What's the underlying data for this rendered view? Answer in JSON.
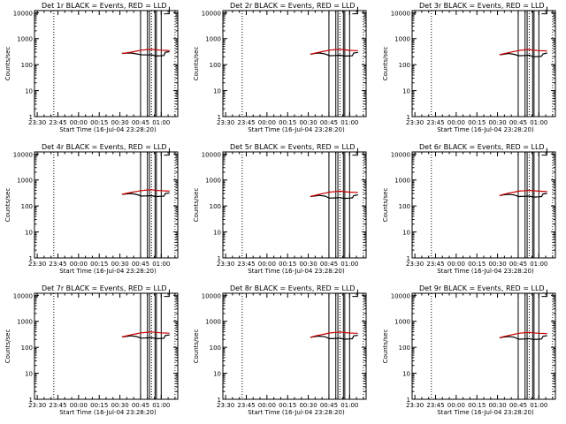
{
  "chart_data": {
    "type": "line",
    "layout": {
      "rows": 3,
      "cols": 3
    },
    "shared": {
      "xlabel": "Start Time (16-Jul-04 23:28:20)",
      "ylabel": "Counts/sec",
      "x_tick_labels": [
        "23:30",
        "23:45",
        "00:00",
        "00:15",
        "00:30",
        "00:45",
        "01:00"
      ],
      "x_ticks_min": [
        0,
        15,
        30,
        45,
        60,
        75,
        90
      ],
      "xlim_min": [
        -2,
        102
      ],
      "ylim": [
        1,
        12000
      ],
      "y_scale": "log",
      "y_tick_labels": [
        "1",
        "10",
        "100",
        "1000",
        "10000"
      ],
      "y_ticks": [
        1,
        10,
        100,
        1000,
        10000
      ],
      "vlines_dotted_min": [
        12,
        83,
        100
      ],
      "vlines_solid_min": [
        75,
        80,
        81.5,
        85.5,
        86.5,
        90
      ],
      "series_colors": {
        "events": "#000000",
        "lld": "#cc0000"
      }
    },
    "panels": [
      {
        "title": "Det 1r BLACK = Events, RED = LLD",
        "events": [
          [
            61.5,
            270
          ],
          [
            64,
            275
          ],
          [
            68,
            280
          ],
          [
            72,
            260
          ],
          [
            75.5,
            240
          ],
          [
            80,
            235
          ],
          [
            83,
            240
          ],
          [
            86,
            215
          ],
          [
            90,
            220
          ],
          [
            92,
            225
          ],
          [
            93,
            300
          ],
          [
            96,
            315
          ]
        ],
        "lld": [
          [
            61.5,
            270
          ],
          [
            64,
            280
          ],
          [
            68,
            300
          ],
          [
            72,
            330
          ],
          [
            75.5,
            360
          ],
          [
            80,
            380
          ],
          [
            83,
            385
          ],
          [
            86,
            375
          ],
          [
            90,
            360
          ],
          [
            93,
            355
          ],
          [
            96,
            350
          ]
        ]
      },
      {
        "title": "Det 2r BLACK = Events, RED = LLD",
        "events": [
          [
            61.5,
            250
          ],
          [
            64,
            265
          ],
          [
            68,
            280
          ],
          [
            72,
            260
          ],
          [
            75.5,
            220
          ],
          [
            80,
            225
          ],
          [
            83,
            230
          ],
          [
            86,
            215
          ],
          [
            90,
            215
          ],
          [
            92,
            220
          ],
          [
            93,
            280
          ],
          [
            96,
            295
          ]
        ],
        "lld": [
          [
            61.5,
            250
          ],
          [
            64,
            270
          ],
          [
            68,
            300
          ],
          [
            72,
            330
          ],
          [
            75.5,
            360
          ],
          [
            80,
            380
          ],
          [
            83,
            390
          ],
          [
            86,
            370
          ],
          [
            90,
            355
          ],
          [
            93,
            350
          ],
          [
            96,
            345
          ]
        ]
      },
      {
        "title": "Det 3r BLACK = Events, RED = LLD",
        "events": [
          [
            61.5,
            240
          ],
          [
            64,
            250
          ],
          [
            68,
            270
          ],
          [
            72,
            250
          ],
          [
            75.5,
            220
          ],
          [
            80,
            225
          ],
          [
            83,
            230
          ],
          [
            86,
            200
          ],
          [
            90,
            205
          ],
          [
            92,
            210
          ],
          [
            93,
            260
          ],
          [
            96,
            280
          ]
        ],
        "lld": [
          [
            61.5,
            240
          ],
          [
            64,
            260
          ],
          [
            68,
            290
          ],
          [
            72,
            320
          ],
          [
            75.5,
            350
          ],
          [
            80,
            370
          ],
          [
            83,
            380
          ],
          [
            86,
            360
          ],
          [
            90,
            345
          ],
          [
            93,
            340
          ],
          [
            96,
            335
          ]
        ]
      },
      {
        "title": "Det 4r BLACK = Events, RED = LLD",
        "events": [
          [
            61.5,
            280
          ],
          [
            64,
            290
          ],
          [
            68,
            300
          ],
          [
            72,
            280
          ],
          [
            75.5,
            240
          ],
          [
            80,
            245
          ],
          [
            83,
            250
          ],
          [
            86,
            230
          ],
          [
            90,
            235
          ],
          [
            92,
            240
          ],
          [
            93,
            300
          ],
          [
            96,
            320
          ]
        ],
        "lld": [
          [
            61.5,
            280
          ],
          [
            64,
            300
          ],
          [
            68,
            330
          ],
          [
            72,
            360
          ],
          [
            75.5,
            390
          ],
          [
            80,
            410
          ],
          [
            83,
            420
          ],
          [
            86,
            400
          ],
          [
            90,
            390
          ],
          [
            93,
            380
          ],
          [
            96,
            370
          ]
        ]
      },
      {
        "title": "Det 5r BLACK = Events, RED = LLD",
        "events": [
          [
            61.5,
            230
          ],
          [
            64,
            240
          ],
          [
            68,
            255
          ],
          [
            72,
            240
          ],
          [
            75.5,
            200
          ],
          [
            80,
            205
          ],
          [
            83,
            210
          ],
          [
            86,
            195
          ],
          [
            90,
            200
          ],
          [
            92,
            205
          ],
          [
            93,
            250
          ],
          [
            96,
            270
          ]
        ],
        "lld": [
          [
            61.5,
            230
          ],
          [
            64,
            250
          ],
          [
            68,
            280
          ],
          [
            72,
            310
          ],
          [
            75.5,
            340
          ],
          [
            80,
            360
          ],
          [
            83,
            370
          ],
          [
            86,
            355
          ],
          [
            90,
            340
          ],
          [
            93,
            335
          ],
          [
            96,
            330
          ]
        ]
      },
      {
        "title": "Det 6r BLACK = Events, RED = LLD",
        "events": [
          [
            61.5,
            250
          ],
          [
            64,
            265
          ],
          [
            68,
            280
          ],
          [
            72,
            265
          ],
          [
            75.5,
            230
          ],
          [
            80,
            235
          ],
          [
            83,
            240
          ],
          [
            86,
            220
          ],
          [
            90,
            225
          ],
          [
            92,
            230
          ],
          [
            93,
            290
          ],
          [
            96,
            305
          ]
        ],
        "lld": [
          [
            61.5,
            250
          ],
          [
            64,
            275
          ],
          [
            68,
            310
          ],
          [
            72,
            340
          ],
          [
            75.5,
            370
          ],
          [
            80,
            390
          ],
          [
            83,
            400
          ],
          [
            86,
            385
          ],
          [
            90,
            370
          ],
          [
            93,
            365
          ],
          [
            96,
            360
          ]
        ]
      },
      {
        "title": "Det 7r BLACK = Events, RED = LLD",
        "events": [
          [
            61.5,
            250
          ],
          [
            64,
            260
          ],
          [
            68,
            275
          ],
          [
            72,
            260
          ],
          [
            75.5,
            225
          ],
          [
            80,
            230
          ],
          [
            83,
            235
          ],
          [
            86,
            215
          ],
          [
            90,
            220
          ],
          [
            92,
            225
          ],
          [
            93,
            285
          ],
          [
            96,
            300
          ]
        ],
        "lld": [
          [
            61.5,
            250
          ],
          [
            64,
            270
          ],
          [
            68,
            300
          ],
          [
            72,
            330
          ],
          [
            75.5,
            360
          ],
          [
            80,
            380
          ],
          [
            83,
            390
          ],
          [
            86,
            375
          ],
          [
            90,
            360
          ],
          [
            93,
            355
          ],
          [
            96,
            350
          ]
        ]
      },
      {
        "title": "Det 8r BLACK = Events, RED = LLD",
        "events": [
          [
            61.5,
            240
          ],
          [
            64,
            255
          ],
          [
            68,
            270
          ],
          [
            72,
            255
          ],
          [
            75.5,
            215
          ],
          [
            80,
            220
          ],
          [
            83,
            225
          ],
          [
            86,
            205
          ],
          [
            90,
            210
          ],
          [
            92,
            215
          ],
          [
            93,
            275
          ],
          [
            96,
            290
          ]
        ],
        "lld": [
          [
            61.5,
            240
          ],
          [
            64,
            265
          ],
          [
            68,
            295
          ],
          [
            72,
            325
          ],
          [
            75.5,
            355
          ],
          [
            80,
            375
          ],
          [
            83,
            385
          ],
          [
            86,
            370
          ],
          [
            90,
            355
          ],
          [
            93,
            350
          ],
          [
            96,
            345
          ]
        ]
      },
      {
        "title": "Det 9r BLACK = Events, RED = LLD",
        "events": [
          [
            61.5,
            230
          ],
          [
            64,
            245
          ],
          [
            68,
            260
          ],
          [
            72,
            245
          ],
          [
            75.5,
            205
          ],
          [
            80,
            210
          ],
          [
            83,
            215
          ],
          [
            86,
            200
          ],
          [
            90,
            205
          ],
          [
            92,
            210
          ],
          [
            93,
            265
          ],
          [
            96,
            280
          ]
        ],
        "lld": [
          [
            61.5,
            230
          ],
          [
            64,
            255
          ],
          [
            68,
            285
          ],
          [
            72,
            315
          ],
          [
            75.5,
            345
          ],
          [
            80,
            365
          ],
          [
            83,
            375
          ],
          [
            86,
            360
          ],
          [
            90,
            345
          ],
          [
            93,
            340
          ],
          [
            96,
            335
          ]
        ]
      }
    ]
  }
}
